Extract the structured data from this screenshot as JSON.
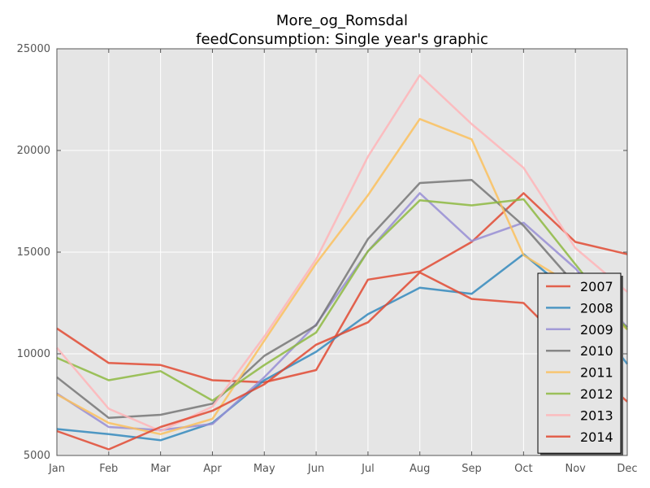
{
  "chart_data": {
    "type": "line",
    "title": "More_og_Romsdal",
    "subtitle": "feedConsumption: Single year's graphic",
    "xlabel": "",
    "ylabel": "",
    "categories": [
      "Jan",
      "Feb",
      "Mar",
      "Apr",
      "May",
      "Jun",
      "Jul",
      "Aug",
      "Sep",
      "Oct",
      "Nov",
      "Dec"
    ],
    "ylim": [
      5000,
      25000
    ],
    "yticks": [
      5000,
      10000,
      15000,
      20000,
      25000
    ],
    "grid": true,
    "legend_position": "right",
    "series": [
      {
        "name": "2007",
        "color": "#E24A33",
        "values": [
          11250,
          9550,
          9450,
          8700,
          8600,
          9200,
          13650,
          14050,
          15500,
          17900,
          15500,
          14900
        ]
      },
      {
        "name": "2008",
        "color": "#348ABD",
        "values": [
          6300,
          6050,
          5750,
          6600,
          8700,
          10100,
          11950,
          13250,
          12950,
          14900,
          12800,
          9500
        ]
      },
      {
        "name": "2009",
        "color": "#988ED5",
        "values": [
          8050,
          6400,
          6250,
          6550,
          8850,
          11450,
          15050,
          17900,
          15550,
          16450,
          14200,
          11300
        ]
      },
      {
        "name": "2010",
        "color": "#777777",
        "values": [
          8850,
          6850,
          7000,
          7550,
          9900,
          11400,
          15650,
          18400,
          18550,
          16300,
          13400,
          11300
        ]
      },
      {
        "name": "2011",
        "color": "#FBC15E",
        "values": [
          8000,
          6600,
          6050,
          6800,
          10650,
          14450,
          17800,
          21550,
          20550,
          14850,
          13300,
          11200
        ]
      },
      {
        "name": "2012",
        "color": "#8EBA42",
        "values": [
          9800,
          8700,
          9150,
          7700,
          9450,
          11050,
          15050,
          17550,
          17300,
          17600,
          14400,
          11200
        ]
      },
      {
        "name": "2013",
        "color": "#FFB5B8",
        "values": [
          10300,
          7300,
          6200,
          7400,
          10850,
          14650,
          19700,
          23700,
          21300,
          19150,
          15200,
          13050
        ]
      },
      {
        "name": "2014",
        "color": "#E24A33",
        "values": [
          6200,
          5300,
          6400,
          7200,
          8500,
          10450,
          11550,
          14000,
          12700,
          12500,
          9950,
          7650
        ]
      }
    ]
  }
}
